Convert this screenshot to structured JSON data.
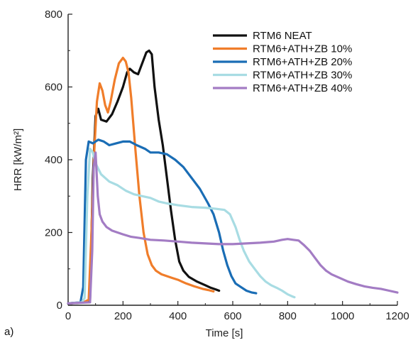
{
  "chart_data": {
    "type": "line",
    "panel_label": "a)",
    "xlabel": "Time [s]",
    "ylabel": "HRR [kW/m²]",
    "xlim": [
      0,
      1200
    ],
    "ylim": [
      0,
      800
    ],
    "x_ticks": [
      "0",
      "200",
      "400",
      "600",
      "800",
      "1000",
      "1200"
    ],
    "y_ticks": [
      "0",
      "200",
      "400",
      "600",
      "800"
    ],
    "grid": false,
    "legend_position": "top-right",
    "series": [
      {
        "name": "RTM6 NEAT",
        "color": "#111111",
        "points": [
          [
            0,
            5
          ],
          [
            60,
            8
          ],
          [
            80,
            15
          ],
          [
            90,
            350
          ],
          [
            100,
            520
          ],
          [
            110,
            540
          ],
          [
            120,
            510
          ],
          [
            140,
            505
          ],
          [
            160,
            525
          ],
          [
            180,
            560
          ],
          [
            200,
            600
          ],
          [
            215,
            640
          ],
          [
            225,
            650
          ],
          [
            240,
            640
          ],
          [
            255,
            635
          ],
          [
            270,
            665
          ],
          [
            285,
            695
          ],
          [
            295,
            700
          ],
          [
            305,
            690
          ],
          [
            315,
            600
          ],
          [
            330,
            510
          ],
          [
            345,
            440
          ],
          [
            360,
            350
          ],
          [
            375,
            260
          ],
          [
            390,
            180
          ],
          [
            405,
            120
          ],
          [
            420,
            95
          ],
          [
            440,
            78
          ],
          [
            470,
            65
          ],
          [
            500,
            55
          ],
          [
            520,
            48
          ],
          [
            540,
            43
          ],
          [
            550,
            40
          ]
        ]
      },
      {
        "name": "RTM6+ATH+ZB 10%",
        "color": "#F07D2A",
        "points": [
          [
            0,
            5
          ],
          [
            55,
            8
          ],
          [
            75,
            15
          ],
          [
            85,
            200
          ],
          [
            95,
            420
          ],
          [
            105,
            560
          ],
          [
            115,
            610
          ],
          [
            125,
            590
          ],
          [
            135,
            550
          ],
          [
            145,
            530
          ],
          [
            155,
            560
          ],
          [
            170,
            620
          ],
          [
            185,
            665
          ],
          [
            200,
            680
          ],
          [
            210,
            670
          ],
          [
            220,
            640
          ],
          [
            230,
            570
          ],
          [
            245,
            430
          ],
          [
            260,
            300
          ],
          [
            275,
            200
          ],
          [
            290,
            140
          ],
          [
            305,
            110
          ],
          [
            320,
            95
          ],
          [
            340,
            85
          ],
          [
            360,
            80
          ],
          [
            380,
            75
          ],
          [
            400,
            70
          ],
          [
            430,
            60
          ],
          [
            460,
            52
          ],
          [
            490,
            45
          ],
          [
            510,
            42
          ],
          [
            530,
            38
          ]
        ]
      },
      {
        "name": "RTM6+ATH+ZB 20%",
        "color": "#1A6DB5",
        "points": [
          [
            0,
            5
          ],
          [
            45,
            8
          ],
          [
            55,
            50
          ],
          [
            65,
            400
          ],
          [
            75,
            450
          ],
          [
            90,
            445
          ],
          [
            110,
            455
          ],
          [
            130,
            450
          ],
          [
            150,
            440
          ],
          [
            175,
            445
          ],
          [
            200,
            450
          ],
          [
            225,
            450
          ],
          [
            250,
            440
          ],
          [
            280,
            430
          ],
          [
            300,
            420
          ],
          [
            330,
            420
          ],
          [
            360,
            415
          ],
          [
            390,
            400
          ],
          [
            420,
            380
          ],
          [
            450,
            350
          ],
          [
            480,
            320
          ],
          [
            510,
            280
          ],
          [
            530,
            250
          ],
          [
            550,
            200
          ],
          [
            565,
            150
          ],
          [
            580,
            110
          ],
          [
            595,
            80
          ],
          [
            610,
            60
          ],
          [
            630,
            50
          ],
          [
            650,
            40
          ],
          [
            670,
            35
          ],
          [
            685,
            33
          ]
        ]
      },
      {
        "name": "RTM6+ATH+ZB 30%",
        "color": "#A8DCE3",
        "points": [
          [
            0,
            5
          ],
          [
            50,
            8
          ],
          [
            60,
            20
          ],
          [
            70,
            300
          ],
          [
            80,
            430
          ],
          [
            90,
            420
          ],
          [
            100,
            390
          ],
          [
            120,
            360
          ],
          [
            150,
            340
          ],
          [
            180,
            330
          ],
          [
            210,
            315
          ],
          [
            240,
            305
          ],
          [
            270,
            300
          ],
          [
            300,
            295
          ],
          [
            330,
            285
          ],
          [
            360,
            280
          ],
          [
            400,
            275
          ],
          [
            450,
            270
          ],
          [
            500,
            268
          ],
          [
            540,
            265
          ],
          [
            570,
            262
          ],
          [
            590,
            250
          ],
          [
            610,
            215
          ],
          [
            625,
            180
          ],
          [
            640,
            150
          ],
          [
            660,
            120
          ],
          [
            680,
            100
          ],
          [
            700,
            80
          ],
          [
            720,
            65
          ],
          [
            740,
            55
          ],
          [
            760,
            48
          ],
          [
            780,
            40
          ],
          [
            800,
            30
          ],
          [
            815,
            25
          ],
          [
            825,
            22
          ]
        ]
      },
      {
        "name": "RTM6+ATH+ZB 40%",
        "color": "#A37CC4",
        "points": [
          [
            0,
            5
          ],
          [
            80,
            8
          ],
          [
            88,
            150
          ],
          [
            93,
            380
          ],
          [
            100,
            420
          ],
          [
            108,
            300
          ],
          [
            115,
            250
          ],
          [
            125,
            230
          ],
          [
            140,
            215
          ],
          [
            160,
            205
          ],
          [
            180,
            200
          ],
          [
            200,
            195
          ],
          [
            230,
            188
          ],
          [
            260,
            185
          ],
          [
            300,
            180
          ],
          [
            350,
            178
          ],
          [
            400,
            175
          ],
          [
            450,
            172
          ],
          [
            500,
            170
          ],
          [
            550,
            168
          ],
          [
            600,
            168
          ],
          [
            650,
            170
          ],
          [
            700,
            172
          ],
          [
            750,
            175
          ],
          [
            780,
            180
          ],
          [
            800,
            182
          ],
          [
            820,
            180
          ],
          [
            840,
            178
          ],
          [
            860,
            165
          ],
          [
            880,
            150
          ],
          [
            900,
            130
          ],
          [
            920,
            110
          ],
          [
            940,
            95
          ],
          [
            960,
            85
          ],
          [
            990,
            75
          ],
          [
            1020,
            65
          ],
          [
            1050,
            58
          ],
          [
            1080,
            52
          ],
          [
            1110,
            48
          ],
          [
            1140,
            45
          ],
          [
            1170,
            40
          ],
          [
            1200,
            35
          ]
        ]
      }
    ]
  }
}
